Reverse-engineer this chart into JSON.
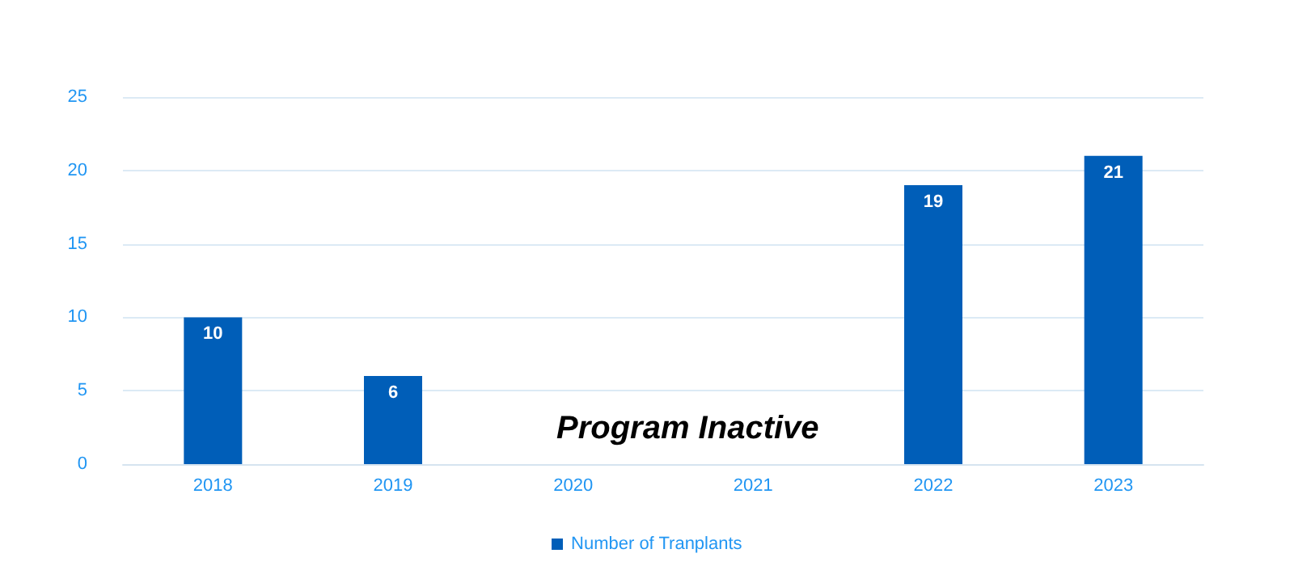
{
  "chart_data": {
    "type": "bar",
    "categories": [
      "2018",
      "2019",
      "2020",
      "2021",
      "2022",
      "2023"
    ],
    "series": [
      {
        "name": "Number of Tranplants",
        "color": "#005eb8",
        "values": [
          10,
          6,
          null,
          null,
          19,
          21
        ]
      }
    ],
    "ylim": [
      0,
      25
    ],
    "yticks": [
      0,
      5,
      10,
      15,
      20,
      25
    ],
    "grid": "y",
    "legend": "bottom",
    "data_labels": true,
    "annotations": [
      "Program Inactive"
    ]
  }
}
